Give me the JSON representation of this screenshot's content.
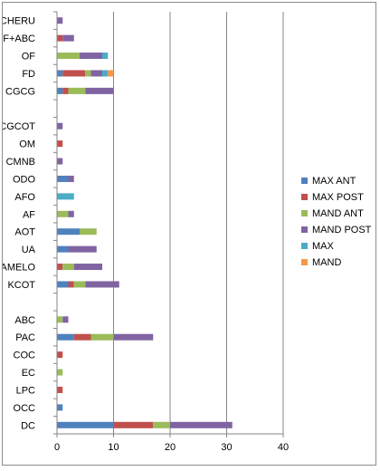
{
  "chart_data": {
    "type": "bar",
    "orientation": "horizontal",
    "stacked": true,
    "title": "",
    "xlabel": "",
    "ylabel": "",
    "xlim": [
      0,
      40
    ],
    "xticks": [
      "0",
      "10",
      "20",
      "30",
      "40"
    ],
    "grid": "vertical",
    "legend_position": "right",
    "categories": [
      "CHERU",
      "OF+ABC",
      "OF",
      "FD",
      "CGCG",
      "",
      "CGCOT",
      "OM",
      "CMNB",
      "ODO",
      "AFO",
      "AF",
      "AOT",
      "UA",
      "AMELO",
      "KCOT",
      "",
      "ABC",
      "PAC",
      "COC",
      "EC",
      "LPC",
      "OCC",
      "DC"
    ],
    "series": [
      {
        "name": "MAX ANT",
        "color": "#4f81bd",
        "values": [
          0,
          0,
          0,
          1,
          1,
          null,
          0,
          0,
          0,
          2,
          0,
          0,
          4,
          2,
          0,
          2,
          null,
          0,
          3,
          0,
          0,
          0,
          1,
          10
        ]
      },
      {
        "name": "MAX POST",
        "color": "#c0504d",
        "values": [
          0,
          1,
          0,
          4,
          1,
          null,
          0,
          1,
          0,
          0,
          0,
          0,
          0,
          0,
          1,
          1,
          null,
          0,
          3,
          1,
          0,
          1,
          0,
          7
        ]
      },
      {
        "name": "MAND ANT",
        "color": "#9bbb59",
        "values": [
          0,
          0,
          4,
          1,
          3,
          null,
          0,
          0,
          0,
          0,
          0,
          2,
          3,
          0,
          2,
          2,
          null,
          1,
          4,
          0,
          1,
          0,
          0,
          3
        ]
      },
      {
        "name": "MAND POST",
        "color": "#8064a2",
        "values": [
          1,
          2,
          4,
          2,
          5,
          null,
          1,
          0,
          1,
          1,
          0,
          1,
          0,
          5,
          5,
          6,
          null,
          1,
          7,
          0,
          0,
          0,
          0,
          11
        ]
      },
      {
        "name": "MAX",
        "color": "#4bacc6",
        "values": [
          0,
          0,
          1,
          1,
          0,
          null,
          0,
          0,
          0,
          0,
          3,
          0,
          0,
          0,
          0,
          0,
          null,
          0,
          0,
          0,
          0,
          0,
          0,
          0
        ]
      },
      {
        "name": "MAND",
        "color": "#f79646",
        "values": [
          0,
          0,
          0,
          1,
          0,
          null,
          0,
          0,
          0,
          0,
          0,
          0,
          0,
          0,
          0,
          0,
          null,
          0,
          0,
          0,
          0,
          0,
          0,
          0
        ]
      }
    ]
  }
}
